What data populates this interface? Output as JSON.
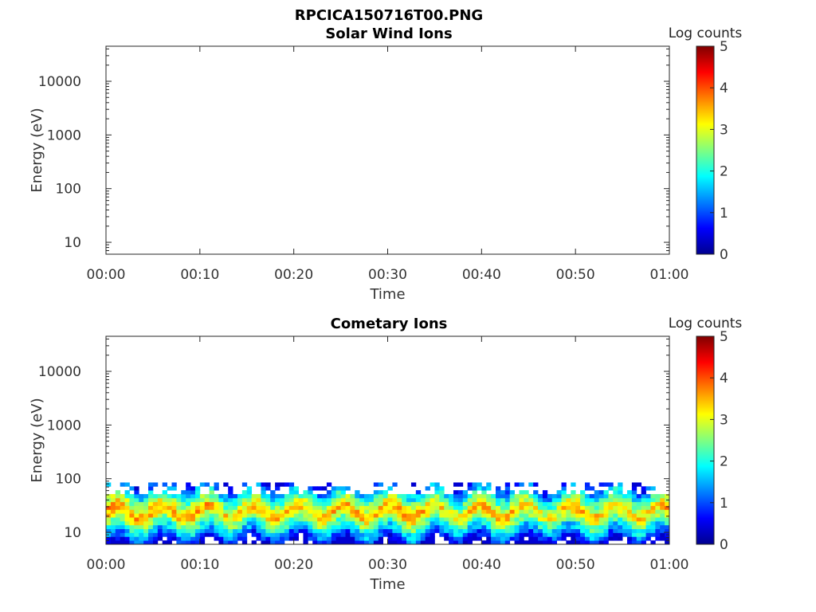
{
  "figure_title": "RPCICA150716T00.PNG",
  "chart_data": [
    {
      "type": "heatmap",
      "title": "Solar Wind Ions",
      "xlabel": "Time",
      "ylabel": "Energy (eV)",
      "x_ticks": [
        "00:00",
        "00:10",
        "00:20",
        "00:30",
        "00:40",
        "00:50",
        "01:00"
      ],
      "x_range": [
        "00:00",
        "01:00"
      ],
      "y_scale": "log",
      "y_ticks": [
        10,
        100,
        1000,
        10000
      ],
      "y_tick_labels": [
        "10",
        "100",
        "1000",
        "10000"
      ],
      "ylim": [
        6,
        45000
      ],
      "colorbar": {
        "label": "Log counts",
        "range": [
          0,
          5
        ],
        "ticks": [
          "0",
          "1",
          "2",
          "3",
          "4",
          "5"
        ],
        "colormap": "jet"
      },
      "data": "empty"
    },
    {
      "type": "heatmap",
      "title": "Cometary Ions",
      "xlabel": "Time",
      "ylabel": "Energy (eV)",
      "x_ticks": [
        "00:00",
        "00:10",
        "00:20",
        "00:30",
        "00:40",
        "00:50",
        "01:00"
      ],
      "x_range": [
        "00:00",
        "01:00"
      ],
      "y_scale": "log",
      "y_ticks": [
        10,
        100,
        1000,
        10000
      ],
      "y_tick_labels": [
        "10",
        "100",
        "1000",
        "10000"
      ],
      "ylim": [
        6,
        45000
      ],
      "colorbar": {
        "label": "Log counts",
        "range": [
          0,
          5
        ],
        "ticks": [
          "0",
          "1",
          "2",
          "3",
          "4",
          "5"
        ],
        "colormap": "jet"
      },
      "data_energy_range_eV": [
        6,
        85
      ],
      "peak_band_energy_eV": [
        15,
        40
      ],
      "band_peak_log_counts": [
        {
          "time": "00:00",
          "value": 3.8
        },
        {
          "time": "00:03",
          "value": 3.7
        },
        {
          "time": "00:06",
          "value": 3.6
        },
        {
          "time": "00:10",
          "value": 3.7
        },
        {
          "time": "00:13",
          "value": 3.3
        },
        {
          "time": "00:17",
          "value": 3.6
        },
        {
          "time": "00:20",
          "value": 3.4
        },
        {
          "time": "00:25",
          "value": 3.6
        },
        {
          "time": "00:30",
          "value": 3.6
        },
        {
          "time": "00:33",
          "value": 3.8
        },
        {
          "time": "00:37",
          "value": 3.2
        },
        {
          "time": "00:40",
          "value": 3.6
        },
        {
          "time": "00:44",
          "value": 3.6
        },
        {
          "time": "00:47",
          "value": 3.1
        },
        {
          "time": "00:50",
          "value": 3.6
        },
        {
          "time": "00:54",
          "value": 3.5
        },
        {
          "time": "00:57",
          "value": 3.4
        },
        {
          "time": "01:00",
          "value": 3.6
        }
      ]
    }
  ]
}
